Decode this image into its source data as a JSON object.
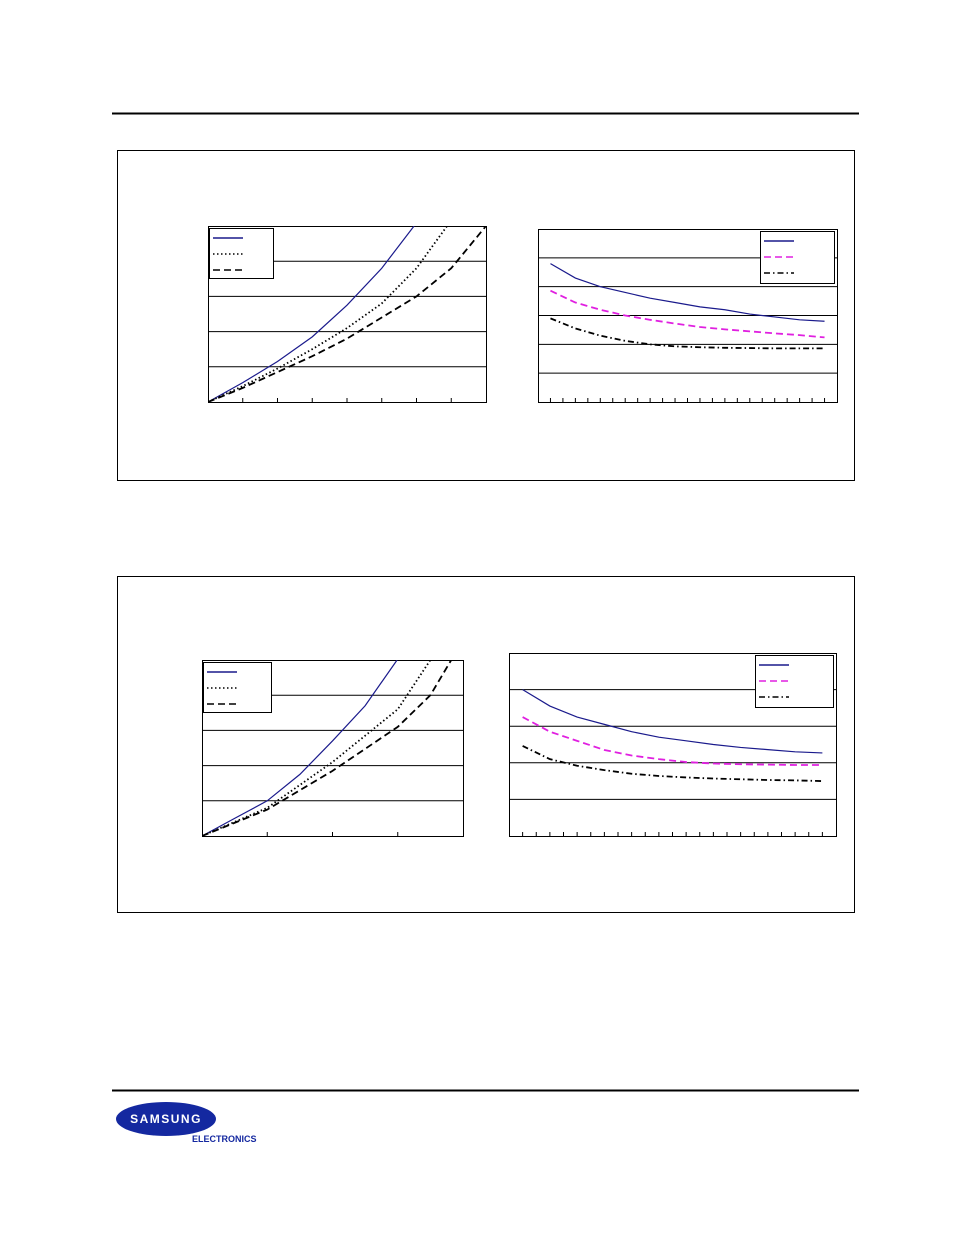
{
  "logo": {
    "brand": "SAMSUNG",
    "division": "ELECTRONICS"
  },
  "chart_data": [
    {
      "type": "line",
      "xlim": [
        0,
        8
      ],
      "xticks": [
        1,
        2,
        3,
        4,
        5,
        6,
        7
      ],
      "ylim": [
        0,
        5
      ],
      "yticks": [
        1,
        2,
        3,
        4
      ],
      "grid": true,
      "legend": "upper left",
      "series": [
        {
          "color": "#1a1a8c",
          "dash": "solid",
          "x": [
            0,
            1,
            2,
            3,
            4,
            5,
            5.93
          ],
          "values": [
            0,
            0.55,
            1.15,
            1.85,
            2.75,
            3.8,
            5
          ]
        },
        {
          "color": "#000000",
          "dash": "dotted",
          "x": [
            0,
            1,
            2,
            3,
            4,
            5,
            6,
            6.88
          ],
          "values": [
            0,
            0.45,
            0.95,
            1.5,
            2.1,
            2.8,
            3.8,
            5
          ]
        },
        {
          "color": "#000000",
          "dash": "dashed",
          "x": [
            0,
            1,
            2,
            3,
            4,
            5,
            6,
            7,
            8
          ],
          "values": [
            0,
            0.4,
            0.85,
            1.3,
            1.8,
            2.4,
            3.0,
            3.8,
            5
          ]
        }
      ]
    },
    {
      "type": "line",
      "xlim": [
        0.5,
        12.5
      ],
      "xticks": [
        1,
        1.5,
        2,
        2.5,
        3,
        3.5,
        4,
        4.5,
        5,
        5.5,
        6,
        6.5,
        7,
        7.5,
        8,
        8.5,
        9,
        9.5,
        10,
        10.5,
        11,
        11.5,
        12
      ],
      "ylim": [
        0,
        6
      ],
      "yticks": [
        1,
        2,
        3,
        4,
        5
      ],
      "grid": true,
      "legend": "upper right",
      "series": [
        {
          "color": "#1a1a8c",
          "dash": "solid",
          "x": [
            1,
            2,
            3,
            4,
            5,
            6,
            7,
            8,
            9,
            10,
            11,
            12
          ],
          "values": [
            4.8,
            4.3,
            4.0,
            3.8,
            3.6,
            3.45,
            3.3,
            3.2,
            3.05,
            2.95,
            2.85,
            2.8
          ]
        },
        {
          "color": "#e020e0",
          "dash": "dashed",
          "x": [
            1,
            2,
            3,
            4,
            5,
            6,
            7,
            8,
            9,
            10,
            11,
            12
          ],
          "values": [
            3.86,
            3.45,
            3.2,
            3.0,
            2.85,
            2.72,
            2.6,
            2.52,
            2.45,
            2.38,
            2.32,
            2.24
          ]
        },
        {
          "color": "#000000",
          "dash": "dashdot",
          "x": [
            1,
            2,
            3,
            4,
            5,
            6,
            7,
            8,
            9,
            10,
            11,
            12
          ],
          "values": [
            2.9,
            2.55,
            2.3,
            2.12,
            2.0,
            1.93,
            1.9,
            1.88,
            1.87,
            1.86,
            1.86,
            1.86
          ]
        }
      ]
    },
    {
      "type": "line",
      "xlim": [
        0,
        4
      ],
      "xticks": [
        1,
        2,
        3
      ],
      "ylim": [
        0,
        5
      ],
      "yticks": [
        1,
        2,
        3,
        4
      ],
      "grid": true,
      "legend": "upper left",
      "series": [
        {
          "color": "#1a1a8c",
          "dash": "solid",
          "x": [
            0,
            0.5,
            1,
            1.5,
            2,
            2.5,
            2.99
          ],
          "values": [
            0,
            0.5,
            1.0,
            1.75,
            2.7,
            3.7,
            5
          ]
        },
        {
          "color": "#000000",
          "dash": "dotted",
          "x": [
            0,
            1,
            2,
            3,
            3.5
          ],
          "values": [
            0,
            0.8,
            2.1,
            3.6,
            5
          ]
        },
        {
          "color": "#000000",
          "dash": "dashed",
          "x": [
            0,
            1,
            2,
            3,
            3.5,
            3.82
          ],
          "values": [
            0,
            0.75,
            1.85,
            3.1,
            4.0,
            5
          ]
        }
      ]
    },
    {
      "type": "line",
      "xlim": [
        0.5,
        12.5
      ],
      "xticks": [
        1,
        1.5,
        2,
        2.5,
        3,
        3.5,
        4,
        4.5,
        5,
        5.5,
        6,
        6.5,
        7,
        7.5,
        8,
        8.5,
        9,
        9.5,
        10,
        10.5,
        11,
        11.5,
        12
      ],
      "ylim": [
        0,
        5
      ],
      "yticks": [
        1,
        2,
        3,
        4
      ],
      "grid": true,
      "legend": "upper right",
      "series": [
        {
          "color": "#1a1a8c",
          "dash": "solid",
          "x": [
            1,
            2,
            3,
            4,
            5,
            6,
            7,
            8,
            9,
            10,
            11,
            12
          ],
          "values": [
            4.0,
            3.55,
            3.25,
            3.05,
            2.85,
            2.7,
            2.6,
            2.5,
            2.42,
            2.36,
            2.3,
            2.27
          ]
        },
        {
          "color": "#e020e0",
          "dash": "dashed",
          "x": [
            1,
            2,
            3,
            4,
            5,
            6,
            7,
            8,
            9,
            10,
            11,
            12
          ],
          "values": [
            3.25,
            2.85,
            2.6,
            2.35,
            2.2,
            2.1,
            2.02,
            1.98,
            1.96,
            1.95,
            1.94,
            1.94
          ]
        },
        {
          "color": "#000000",
          "dash": "dashdot",
          "x": [
            1,
            2,
            3,
            4,
            5,
            6,
            7,
            8,
            9,
            10,
            11,
            12
          ],
          "values": [
            2.46,
            2.1,
            1.92,
            1.8,
            1.7,
            1.64,
            1.6,
            1.57,
            1.55,
            1.53,
            1.52,
            1.5
          ]
        }
      ]
    }
  ]
}
